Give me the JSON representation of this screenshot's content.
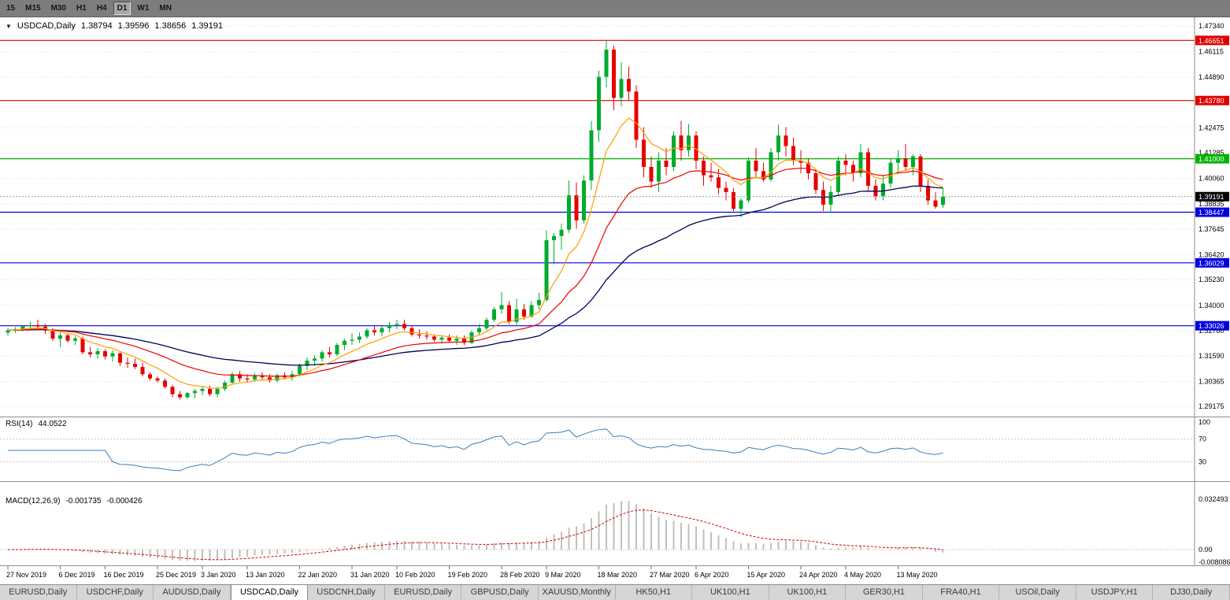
{
  "toolbar": {
    "timeframes": [
      {
        "label": "15",
        "active": false
      },
      {
        "label": "M15",
        "active": false
      },
      {
        "label": "M30",
        "active": false
      },
      {
        "label": "H1",
        "active": false
      },
      {
        "label": "H4",
        "active": false
      },
      {
        "label": "D1",
        "active": true
      },
      {
        "label": "W1",
        "active": false
      },
      {
        "label": "MN",
        "active": false
      }
    ]
  },
  "chart_header": {
    "collapse_icon": "▼",
    "symbol": "USDCAD,Daily",
    "open": "1.38794",
    "high": "1.39596",
    "low": "1.38656",
    "close": "1.39191"
  },
  "rsi_header": {
    "label": "RSI(14)",
    "value": "44.0522"
  },
  "macd_header": {
    "label": "MACD(12,26,9)",
    "main": "-0.001735",
    "signal": "-0.000426"
  },
  "tabs": [
    {
      "label": "EURUSD,Daily",
      "active": false
    },
    {
      "label": "USDCHF,Daily",
      "active": false
    },
    {
      "label": "AUDUSD,Daily",
      "active": false
    },
    {
      "label": "USDCAD,Daily",
      "active": true
    },
    {
      "label": "USDCNH,Daily",
      "active": false
    },
    {
      "label": "EURUSD,Daily",
      "active": false
    },
    {
      "label": "GBPUSD,Daily",
      "active": false
    },
    {
      "label": "XAUUSD,Monthly",
      "active": false
    },
    {
      "label": "HK50,H1",
      "active": false
    },
    {
      "label": "UK100,H1",
      "active": false
    },
    {
      "label": "UK100,H1",
      "active": false
    },
    {
      "label": "GER30,H1",
      "active": false
    },
    {
      "label": "FRA40,H1",
      "active": false
    },
    {
      "label": "USOil,Daily",
      "active": false
    },
    {
      "label": "USDJPY,H1",
      "active": false
    },
    {
      "label": "DJ30,Daily",
      "active": false
    }
  ],
  "colors": {
    "grid": "#e2e2e2",
    "bull": "#00ab2c",
    "bear": "#e80000",
    "ma_fast": "#ff9e00",
    "ma_mid": "#ee0000",
    "ma_slow": "#000055",
    "current_line": "#9a9a9a",
    "current_badge": "#000000",
    "rsi_line": "#3b7dbb",
    "rsi_level": "#c6c6c6",
    "macd_hist": "#bfbfbf",
    "macd_signal": "#d40000",
    "separator": "#8d8d8d",
    "axis_text": "#000000"
  },
  "chart_data": {
    "type": "candlestick",
    "symbol": "USDCAD",
    "timeframe": "Daily",
    "price_range": [
      1.28728,
      1.47528
    ],
    "price_axis_labels": [
      1.4734,
      1.46115,
      1.4489,
      1.42475,
      1.41285,
      1.4006,
      1.38835,
      1.37645,
      1.3642,
      1.3523,
      1.34,
      1.3278,
      1.3159,
      1.30365,
      1.29175
    ],
    "hlines": [
      {
        "price": 1.46651,
        "label": "1.46651",
        "color": "#e00000"
      },
      {
        "price": 1.4378,
        "label": "1.43780",
        "color": "#e00000"
      },
      {
        "price": 1.41,
        "label": "1.41000",
        "color": "#00b400"
      },
      {
        "price": 1.38447,
        "label": "1.38447",
        "color": "#0000e0"
      },
      {
        "price": 1.36029,
        "label": "1.36029",
        "color": "#0000e0"
      },
      {
        "price": 1.33026,
        "label": "1.33026",
        "color": "#0000e0"
      }
    ],
    "current_price": {
      "value": 1.39191,
      "label": "1.39191"
    },
    "ma_periods": {
      "fast": 8,
      "mid": 21,
      "slow": 45
    },
    "rsi": {
      "period": 14,
      "current": 44.0522,
      "axis_labels": [
        100,
        70,
        30
      ],
      "levels": [
        70,
        30
      ]
    },
    "macd": {
      "params": "12,26,9",
      "axis_labels": [
        "0.032493",
        "0.00",
        "-0.008086"
      ],
      "max": 0.032493,
      "min": -0.008086
    },
    "time_labels": [
      {
        "i": 0,
        "t": "27 Nov 2019"
      },
      {
        "i": 7,
        "t": "6 Dec 2019"
      },
      {
        "i": 13,
        "t": "16 Dec 2019"
      },
      {
        "i": 20,
        "t": "25 Dec 2019"
      },
      {
        "i": 26,
        "t": "3 Jan 2020"
      },
      {
        "i": 32,
        "t": "13 Jan 2020"
      },
      {
        "i": 39,
        "t": "22 Jan 2020"
      },
      {
        "i": 46,
        "t": "31 Jan 2020"
      },
      {
        "i": 52,
        "t": "10 Feb 2020"
      },
      {
        "i": 59,
        "t": "19 Feb 2020"
      },
      {
        "i": 66,
        "t": "28 Feb 2020"
      },
      {
        "i": 72,
        "t": "9 Mar 2020"
      },
      {
        "i": 79,
        "t": "18 Mar 2020"
      },
      {
        "i": 86,
        "t": "27 Mar 2020"
      },
      {
        "i": 92,
        "t": "6 Apr 2020"
      },
      {
        "i": 99,
        "t": "15 Apr 2020"
      },
      {
        "i": 106,
        "t": "24 Apr 2020"
      },
      {
        "i": 112,
        "t": "4 May 2020"
      },
      {
        "i": 119,
        "t": "13 May 2020"
      }
    ],
    "candles": [
      [
        1.327,
        1.3292,
        1.3256,
        1.3281
      ],
      [
        1.3281,
        1.3296,
        1.3268,
        1.3286
      ],
      [
        1.3286,
        1.3306,
        1.3276,
        1.33
      ],
      [
        1.33,
        1.3322,
        1.3281,
        1.3306
      ],
      [
        1.3306,
        1.3331,
        1.3291,
        1.3299
      ],
      [
        1.3299,
        1.3311,
        1.3264,
        1.328
      ],
      [
        1.328,
        1.3291,
        1.3229,
        1.3241
      ],
      [
        1.3241,
        1.3272,
        1.3201,
        1.3257
      ],
      [
        1.3257,
        1.3266,
        1.3221,
        1.3231
      ],
      [
        1.3231,
        1.3252,
        1.3211,
        1.3242
      ],
      [
        1.3242,
        1.3251,
        1.3166,
        1.3176
      ],
      [
        1.3176,
        1.3201,
        1.3151,
        1.3166
      ],
      [
        1.3166,
        1.3196,
        1.3146,
        1.3181
      ],
      [
        1.3181,
        1.3191,
        1.3141,
        1.3156
      ],
      [
        1.3156,
        1.3186,
        1.3131,
        1.3171
      ],
      [
        1.3171,
        1.3176,
        1.3111,
        1.3126
      ],
      [
        1.3126,
        1.3151,
        1.3101,
        1.3121
      ],
      [
        1.3121,
        1.3146,
        1.3096,
        1.3106
      ],
      [
        1.3106,
        1.3126,
        1.3061,
        1.3071
      ],
      [
        1.3071,
        1.3081,
        1.3041,
        1.3051
      ],
      [
        1.3051,
        1.3061,
        1.3031,
        1.3041
      ],
      [
        1.3041,
        1.3051,
        1.3001,
        1.3011
      ],
      [
        1.3011,
        1.3021,
        1.2961,
        1.2976
      ],
      [
        1.2976,
        1.2991,
        1.2951,
        1.2961
      ],
      [
        1.2961,
        1.2986,
        1.2953,
        1.2981
      ],
      [
        1.2981,
        1.3001,
        1.2956,
        1.2991
      ],
      [
        1.2991,
        1.3011,
        1.2971,
        1.3001
      ],
      [
        1.3001,
        1.3016,
        1.2966,
        1.2976
      ],
      [
        1.2976,
        1.3011,
        1.2961,
        1.3001
      ],
      [
        1.3001,
        1.3041,
        1.2991,
        1.3031
      ],
      [
        1.3031,
        1.3081,
        1.3021,
        1.3071
      ],
      [
        1.3071,
        1.3086,
        1.3036,
        1.3051
      ],
      [
        1.3051,
        1.3071,
        1.3031,
        1.3046
      ],
      [
        1.3046,
        1.3076,
        1.3036,
        1.3066
      ],
      [
        1.3066,
        1.3081,
        1.3041,
        1.3056
      ],
      [
        1.3056,
        1.3071,
        1.3031,
        1.3041
      ],
      [
        1.3041,
        1.3076,
        1.3031,
        1.3066
      ],
      [
        1.3066,
        1.3081,
        1.3046,
        1.3056
      ],
      [
        1.3056,
        1.3086,
        1.3041,
        1.3071
      ],
      [
        1.3071,
        1.3121,
        1.3061,
        1.3111
      ],
      [
        1.3111,
        1.3151,
        1.3091,
        1.3136
      ],
      [
        1.3136,
        1.3161,
        1.3111,
        1.3146
      ],
      [
        1.3146,
        1.3186,
        1.3131,
        1.3176
      ],
      [
        1.3176,
        1.3201,
        1.3151,
        1.3166
      ],
      [
        1.3166,
        1.3221,
        1.3156,
        1.3211
      ],
      [
        1.3211,
        1.3241,
        1.3186,
        1.3231
      ],
      [
        1.3231,
        1.3266,
        1.3211,
        1.3236
      ],
      [
        1.3236,
        1.3271,
        1.3221,
        1.3251
      ],
      [
        1.3251,
        1.3291,
        1.3241,
        1.3281
      ],
      [
        1.3281,
        1.3301,
        1.3256,
        1.3271
      ],
      [
        1.3271,
        1.3301,
        1.3251,
        1.3291
      ],
      [
        1.3291,
        1.3321,
        1.3271,
        1.3306
      ],
      [
        1.3306,
        1.3331,
        1.3286,
        1.3311
      ],
      [
        1.3311,
        1.3331,
        1.3281,
        1.3291
      ],
      [
        1.3291,
        1.3301,
        1.3251,
        1.3261
      ],
      [
        1.3261,
        1.3286,
        1.3241,
        1.3256
      ],
      [
        1.3256,
        1.3276,
        1.3236,
        1.3251
      ],
      [
        1.3251,
        1.3261,
        1.3226,
        1.3236
      ],
      [
        1.3236,
        1.3256,
        1.3216,
        1.3246
      ],
      [
        1.3246,
        1.3261,
        1.3221,
        1.3231
      ],
      [
        1.3231,
        1.3256,
        1.3211,
        1.3241
      ],
      [
        1.3241,
        1.3256,
        1.3211,
        1.3221
      ],
      [
        1.3221,
        1.3281,
        1.3216,
        1.3271
      ],
      [
        1.3271,
        1.3311,
        1.3256,
        1.3291
      ],
      [
        1.3291,
        1.3341,
        1.3281,
        1.3331
      ],
      [
        1.3331,
        1.3391,
        1.3321,
        1.3381
      ],
      [
        1.3381,
        1.3464,
        1.3361,
        1.3401
      ],
      [
        1.3401,
        1.3421,
        1.3311,
        1.3321
      ],
      [
        1.3321,
        1.3431,
        1.3301,
        1.3381
      ],
      [
        1.3381,
        1.3406,
        1.3331,
        1.3346
      ],
      [
        1.3346,
        1.3421,
        1.3341,
        1.3401
      ],
      [
        1.3401,
        1.3461,
        1.3381,
        1.3426
      ],
      [
        1.3426,
        1.3758,
        1.3416,
        1.3711
      ],
      [
        1.3711,
        1.3746,
        1.3596,
        1.3731
      ],
      [
        1.3731,
        1.3791,
        1.3666,
        1.3761
      ],
      [
        1.3761,
        1.3996,
        1.3746,
        1.3926
      ],
      [
        1.3926,
        1.3986,
        1.3766,
        1.3806
      ],
      [
        1.3806,
        1.4021,
        1.3791,
        1.3996
      ],
      [
        1.3996,
        1.4281,
        1.3951,
        1.4236
      ],
      [
        1.4236,
        1.4521,
        1.4181,
        1.4491
      ],
      [
        1.4491,
        1.4668,
        1.4441,
        1.4621
      ],
      [
        1.4621,
        1.4641,
        1.4331,
        1.4391
      ],
      [
        1.4391,
        1.4561,
        1.4351,
        1.4481
      ],
      [
        1.4481,
        1.4541,
        1.4381,
        1.4421
      ],
      [
        1.4421,
        1.4451,
        1.4151,
        1.4191
      ],
      [
        1.4191,
        1.4251,
        1.4011,
        1.4061
      ],
      [
        1.4061,
        1.4111,
        1.3961,
        1.3991
      ],
      [
        1.3991,
        1.4131,
        1.3941,
        1.4091
      ],
      [
        1.4091,
        1.4151,
        1.4021,
        1.4061
      ],
      [
        1.4061,
        1.4231,
        1.4041,
        1.4211
      ],
      [
        1.4211,
        1.4281,
        1.4091,
        1.4141
      ],
      [
        1.4141,
        1.4266,
        1.4111,
        1.4211
      ],
      [
        1.4211,
        1.4231,
        1.4051,
        1.4091
      ],
      [
        1.4091,
        1.4111,
        1.3971,
        1.4021
      ],
      [
        1.4021,
        1.4081,
        1.3991,
        1.4011
      ],
      [
        1.4011,
        1.4051,
        1.3931,
        1.3961
      ],
      [
        1.3961,
        1.3991,
        1.3901,
        1.3941
      ],
      [
        1.3941,
        1.3961,
        1.3851,
        1.3861
      ],
      [
        1.3861,
        1.3911,
        1.3821,
        1.3901
      ],
      [
        1.3901,
        1.4106,
        1.3891,
        1.4091
      ],
      [
        1.4091,
        1.4151,
        1.4011,
        1.4041
      ],
      [
        1.4041,
        1.4081,
        1.3991,
        1.4001
      ],
      [
        1.4001,
        1.4151,
        1.3991,
        1.4131
      ],
      [
        1.4131,
        1.4263,
        1.4091,
        1.4211
      ],
      [
        1.4211,
        1.4251,
        1.4111,
        1.4161
      ],
      [
        1.4161,
        1.4201,
        1.4071,
        1.4091
      ],
      [
        1.4091,
        1.4141,
        1.4031,
        1.4081
      ],
      [
        1.4081,
        1.4101,
        1.4001,
        1.4031
      ],
      [
        1.4031,
        1.4051,
        1.3931,
        1.3951
      ],
      [
        1.3951,
        1.3991,
        1.3851,
        1.3881
      ],
      [
        1.3881,
        1.3971,
        1.3841,
        1.3941
      ],
      [
        1.3941,
        1.4111,
        1.3931,
        1.4091
      ],
      [
        1.4091,
        1.4121,
        1.4021,
        1.4071
      ],
      [
        1.4071,
        1.4091,
        1.3991,
        1.4031
      ],
      [
        1.4031,
        1.4171,
        1.4011,
        1.4131
      ],
      [
        1.4131,
        1.4151,
        1.3951,
        1.3971
      ],
      [
        1.3971,
        1.4001,
        1.3901,
        1.3921
      ],
      [
        1.3921,
        1.4021,
        1.3901,
        1.3981
      ],
      [
        1.3981,
        1.4101,
        1.3961,
        1.4081
      ],
      [
        1.4081,
        1.4141,
        1.4031,
        1.4101
      ],
      [
        1.4101,
        1.4171,
        1.4041,
        1.4061
      ],
      [
        1.4061,
        1.4121,
        1.4021,
        1.4111
      ],
      [
        1.4111,
        1.4121,
        1.3941,
        1.3971
      ],
      [
        1.3971,
        1.4001,
        1.3881,
        1.3901
      ],
      [
        1.3901,
        1.3941,
        1.3861,
        1.3871
      ],
      [
        1.38794,
        1.39596,
        1.38656,
        1.39191
      ]
    ]
  }
}
